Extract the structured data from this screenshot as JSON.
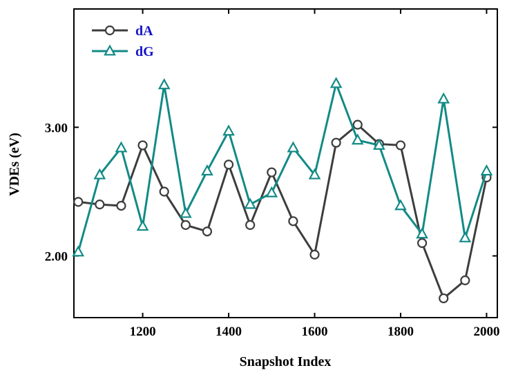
{
  "chart_data": {
    "type": "line",
    "xlabel": "Snapshot Index",
    "ylabel": "VDEs  (eV)",
    "xlim": [
      1040,
      2025
    ],
    "ylim": [
      1.52,
      3.92
    ],
    "x_ticks": [
      1200,
      1400,
      1600,
      1800,
      2000
    ],
    "x_tick_labels": [
      "1200",
      "1400",
      "1600",
      "1800",
      "2000"
    ],
    "y_ticks": [
      2.0,
      3.0
    ],
    "y_tick_labels": [
      "2.00",
      "3.00"
    ],
    "legend_position": "top-left",
    "x": [
      1050,
      1100,
      1150,
      1200,
      1250,
      1300,
      1350,
      1400,
      1450,
      1500,
      1550,
      1600,
      1650,
      1700,
      1750,
      1800,
      1850,
      1900,
      1950,
      2000
    ],
    "series": [
      {
        "name": "dA",
        "marker": "circle",
        "color": "#3d3d3d",
        "label_color": "#1515c8",
        "values": [
          2.42,
          2.4,
          2.39,
          2.86,
          2.5,
          2.24,
          2.19,
          2.71,
          2.24,
          2.65,
          2.27,
          2.01,
          2.88,
          3.02,
          2.87,
          2.86,
          2.1,
          1.67,
          1.81,
          2.61
        ]
      },
      {
        "name": "dG",
        "marker": "triangle",
        "color": "#128a86",
        "label_color": "#1515c8",
        "values": [
          2.03,
          2.63,
          2.84,
          2.23,
          3.33,
          2.33,
          2.66,
          2.97,
          2.4,
          2.49,
          2.84,
          2.63,
          3.34,
          2.9,
          2.86,
          2.39,
          2.17,
          3.22,
          2.14,
          2.66
        ]
      }
    ]
  }
}
